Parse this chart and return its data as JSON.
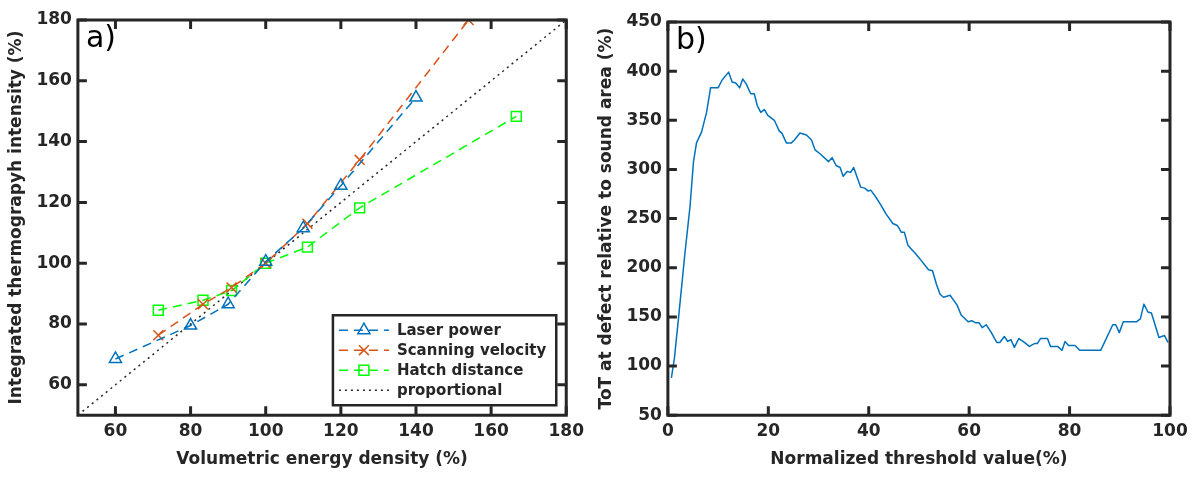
{
  "chart_data": [
    {
      "type": "line",
      "xlabel": "Volumetric energy density (%)",
      "ylabel": "Integrated thermograpyh intensity (%)",
      "annotations": [
        "a)"
      ],
      "xlim": [
        50,
        180
      ],
      "ylim": [
        50,
        180
      ],
      "xticks": [
        60,
        80,
        100,
        120,
        140,
        160,
        180
      ],
      "yticks": [
        60,
        80,
        100,
        120,
        140,
        160,
        180
      ],
      "grid": false,
      "legend": "bottom right",
      "series": [
        {
          "name": "Laser power",
          "color": "#0072bd",
          "marker": "triangle",
          "line_style": "dashed",
          "x": [
            60,
            80,
            90,
            100,
            110,
            120,
            140
          ],
          "values": [
            68.5,
            79.5,
            86.5,
            100.5,
            111.5,
            125.5,
            154.5
          ]
        },
        {
          "name": "Scanning velocity",
          "color": "#d95319",
          "marker": "cross",
          "line_style": "dashed",
          "x": [
            71.4,
            83.3,
            90.9,
            100,
            111.1,
            125,
            154
          ],
          "values": [
            76.3,
            86.5,
            92,
            100,
            113,
            134,
            180
          ]
        },
        {
          "name": "Hatch distance",
          "color": "#00ff00",
          "marker": "square",
          "line_style": "dashed",
          "x": [
            71.4,
            83.3,
            90.9,
            100,
            111.1,
            125,
            166.7
          ],
          "values": [
            84.5,
            87.8,
            91,
            100,
            105.3,
            118.2,
            148.3
          ]
        },
        {
          "name": "proportional",
          "color": "#262626",
          "marker": "none",
          "line_style": "dotted",
          "x": [
            50,
            180
          ],
          "values": [
            50,
            180
          ]
        }
      ]
    },
    {
      "type": "line",
      "xlabel": "Normalized threshold value(%)",
      "ylabel": "ToT at defect relative to sound area (%)",
      "annotations": [
        "b)"
      ],
      "xlim": [
        0,
        100
      ],
      "ylim": [
        50,
        450
      ],
      "xticks": [
        0,
        20,
        40,
        60,
        80,
        100
      ],
      "yticks": [
        50,
        100,
        150,
        200,
        250,
        300,
        350,
        400,
        450
      ],
      "grid": false,
      "series": [
        {
          "color": "#0072bd",
          "marker": "none",
          "line_style": "solid",
          "x": [
            0.7,
            1.3,
            2.1,
            3.4,
            4.4,
            5.1,
            5.7,
            6.7,
            7.7,
            8.5,
            10,
            10.8,
            12.1,
            12.8,
            13.5,
            14.3,
            14.9,
            15.6,
            16.5,
            17.2,
            17.8,
            18.5,
            19.2,
            19.9,
            21.2,
            22.2,
            22.7,
            23.6,
            24.6,
            25.2,
            26.3,
            27.6,
            28.6,
            29.3,
            30.3,
            32,
            32.7,
            33.5,
            34.3,
            34.9,
            35.7,
            36.4,
            37,
            38.4,
            39.2,
            39.9,
            40.4,
            41.4,
            42.4,
            43.4,
            44.8,
            45.7,
            46.5,
            47.1,
            47.8,
            49.2,
            50.2,
            51.9,
            52.7,
            53.5,
            54.2,
            54.9,
            56.2,
            57.6,
            58.4,
            59.8,
            60.6,
            61.3,
            62,
            62.6,
            63.4,
            64.3,
            65.5,
            66.1,
            67,
            67.7,
            68.3,
            69,
            69.9,
            71,
            72,
            73.1,
            73.6,
            74.2,
            75.6,
            76.2,
            77.6,
            78.5,
            79.1,
            79.8,
            81.1,
            82,
            86.2,
            88.6,
            89.2,
            89.9,
            90.7,
            93.3,
            94.1,
            94.8,
            95.6,
            96.3,
            97.8,
            98.9,
            99.6
          ],
          "values": [
            88,
            108,
            148,
            215,
            262,
            308,
            327,
            338,
            358,
            383,
            383,
            391,
            399,
            389,
            388,
            383,
            392,
            387,
            377,
            377,
            365,
            358,
            361,
            355,
            350,
            339,
            337,
            327,
            327,
            330,
            337,
            335,
            330,
            320,
            316,
            308,
            312,
            304,
            302,
            293,
            298,
            297,
            302,
            282,
            281,
            278,
            279,
            272,
            264,
            255,
            245,
            243,
            236,
            236,
            223,
            215,
            209,
            198,
            197,
            183,
            173,
            170,
            172,
            162,
            152,
            145,
            146,
            144,
            144,
            139,
            142,
            135,
            124,
            124,
            130,
            125,
            127,
            119,
            128,
            124,
            120,
            123,
            123,
            128,
            128,
            120,
            120,
            116,
            125,
            121,
            121,
            116,
            116,
            142,
            142,
            134,
            145,
            145,
            148,
            163,
            155,
            154,
            129,
            131,
            124
          ]
        }
      ]
    }
  ]
}
